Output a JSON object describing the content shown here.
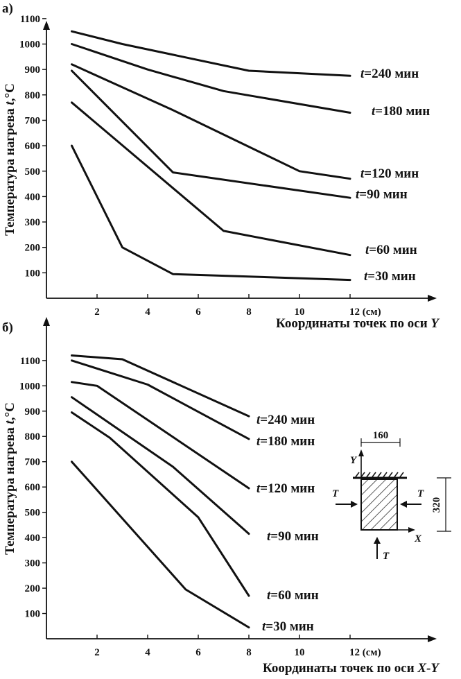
{
  "chart_data": [
    {
      "type": "line",
      "panel_label": "а)",
      "xlabel": "Координаты точек по оси",
      "xlabel_var": "Y",
      "x_unit_label": "12 (см)",
      "ylabel": "Температура нагрева",
      "ylabel_var": "t",
      "ylabel_unit": ",°C",
      "x_ticks": [
        2,
        4,
        6,
        8,
        10,
        12
      ],
      "y_ticks": [
        100,
        200,
        300,
        400,
        500,
        600,
        700,
        800,
        900,
        1000,
        1100
      ],
      "xlim": [
        0,
        15.3
      ],
      "ylim": [
        0,
        1100
      ],
      "grid": false,
      "series": [
        {
          "name": "=240 мин",
          "var": "t",
          "x": [
            1,
            3,
            8,
            12
          ],
          "y": [
            1050,
            1000,
            895,
            875
          ]
        },
        {
          "name": "=180 мин",
          "var": "t",
          "x": [
            1,
            4,
            7,
            12
          ],
          "y": [
            1000,
            900,
            815,
            730
          ]
        },
        {
          "name": "=120 мин",
          "var": "t",
          "x": [
            1,
            5,
            10,
            12
          ],
          "y": [
            920,
            740,
            500,
            470
          ]
        },
        {
          "name": "=90 мин",
          "var": "t",
          "x": [
            1,
            5,
            12
          ],
          "y": [
            895,
            495,
            395
          ]
        },
        {
          "name": "=60 мин",
          "var": "t",
          "x": [
            1,
            7,
            12
          ],
          "y": [
            770,
            265,
            170
          ]
        },
        {
          "name": "=30 мин",
          "var": "t",
          "x": [
            1,
            3,
            5,
            12
          ],
          "y": [
            600,
            200,
            95,
            72
          ]
        }
      ]
    },
    {
      "type": "line",
      "panel_label": "б)",
      "xlabel": "Координаты точек по оси",
      "xlabel_var": "X-Y",
      "x_unit_label": "12 (см)",
      "ylabel": "Температура нагрева",
      "ylabel_var": "t",
      "ylabel_unit": ",°C",
      "x_ticks": [
        2,
        4,
        6,
        8,
        10,
        12
      ],
      "y_ticks": [
        100,
        200,
        300,
        400,
        500,
        600,
        700,
        800,
        900,
        1000,
        1100
      ],
      "xlim": [
        0,
        15.3
      ],
      "ylim": [
        0,
        1160
      ],
      "grid": false,
      "series": [
        {
          "name": "=240 мин",
          "var": "t",
          "x": [
            1,
            3,
            8
          ],
          "y": [
            1120,
            1105,
            880
          ]
        },
        {
          "name": "=180 мин",
          "var": "t",
          "x": [
            1,
            4,
            8
          ],
          "y": [
            1100,
            1005,
            790
          ]
        },
        {
          "name": "=120 мин",
          "var": "t",
          "x": [
            1,
            2,
            8
          ],
          "y": [
            1015,
            1000,
            595
          ]
        },
        {
          "name": "=90 мин",
          "var": "t",
          "x": [
            1,
            5,
            8
          ],
          "y": [
            955,
            680,
            415
          ]
        },
        {
          "name": "=60 мин",
          "var": "t",
          "x": [
            1,
            2.5,
            6,
            8
          ],
          "y": [
            895,
            795,
            480,
            170
          ]
        },
        {
          "name": "=30 мин",
          "var": "t",
          "x": [
            1,
            5.5,
            8
          ],
          "y": [
            700,
            195,
            45
          ]
        }
      ],
      "inset": {
        "width_label": "160",
        "height_label": "320",
        "axis_x_label": "X",
        "axis_y_label": "Y",
        "flux_label": "T"
      }
    }
  ]
}
